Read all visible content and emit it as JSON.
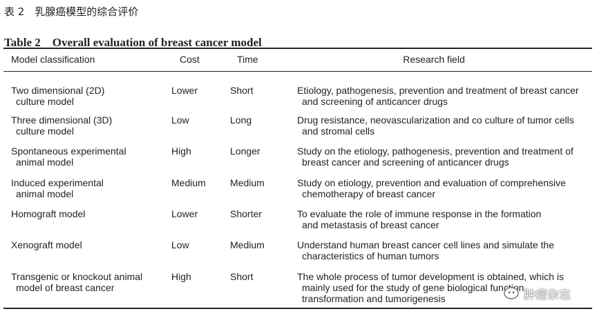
{
  "header": {
    "title_cn": "表 2　乳腺癌模型的综合评价",
    "title_en": "Table 2　Overall evaluation of breast cancer model"
  },
  "table": {
    "columns": [
      "Model classification",
      "Cost",
      "Time",
      "Research field"
    ],
    "rows": [
      [
        [
          "Two dimensional (2D)",
          "culture model"
        ],
        [
          "Lower"
        ],
        [
          "Short"
        ],
        [
          "Etiology, pathogenesis, prevention and treatment of breast cancer",
          "and screening of anticancer drugs"
        ]
      ],
      [
        [
          "Three dimensional (3D)",
          "culture model"
        ],
        [
          "Low"
        ],
        [
          "Long"
        ],
        [
          "Drug resistance, neovascularization and co culture of tumor cells",
          "and stromal cells"
        ]
      ],
      [
        [
          "Spontaneous experimental",
          "animal model"
        ],
        [
          "High"
        ],
        [
          "Longer"
        ],
        [
          "Study on the etiology, pathogenesis, prevention and treatment of",
          "breast cancer and screening of anticancer drugs"
        ]
      ],
      [
        [
          "Induced experimental",
          "animal model"
        ],
        [
          "Medium"
        ],
        [
          "Medium"
        ],
        [
          "Study on etiology, prevention and evaluation of comprehensive",
          "chemotherapy of breast cancer"
        ]
      ],
      [
        [
          "Homograft model"
        ],
        [
          "Lower"
        ],
        [
          "Shorter"
        ],
        [
          "To evaluate the role of immune response in the formation",
          "and metastasis of breast cancer"
        ]
      ],
      [
        [
          "Xenograft model"
        ],
        [
          "Low"
        ],
        [
          "Medium"
        ],
        [
          "Understand human breast cancer cell lines and simulate the",
          "characteristics of human tumors"
        ]
      ],
      [
        [
          "Transgenic or knockout animal",
          "model of breast cancer"
        ],
        [
          "High"
        ],
        [
          "Short"
        ],
        [
          "The whole process of tumor development is obtained, which is",
          "mainly used for the study of gene biological function,",
          "transformation and tumorigenesis"
        ]
      ]
    ]
  },
  "watermark": "肿瘤杂志"
}
